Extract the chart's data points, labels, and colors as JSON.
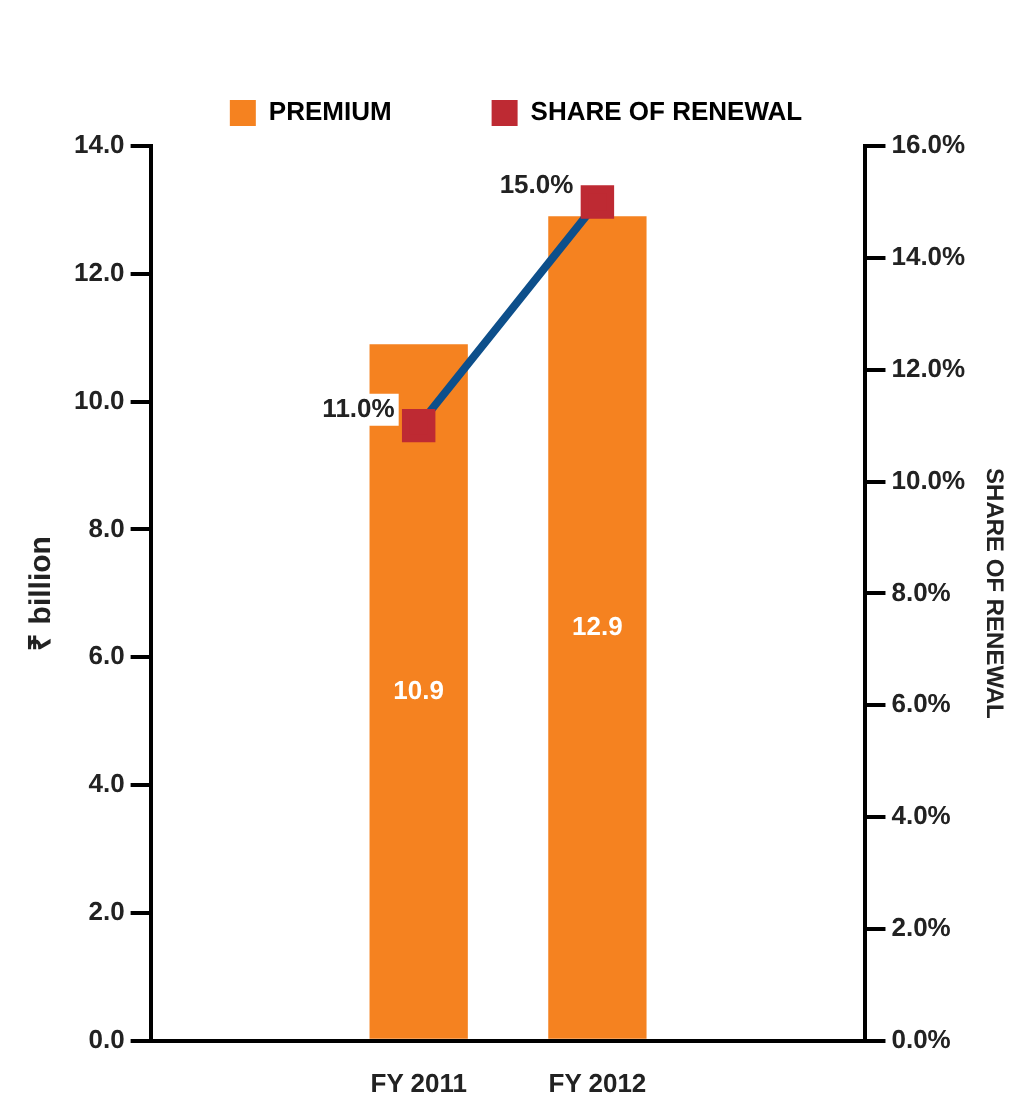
{
  "chart_data": {
    "type": "bar",
    "categories": [
      null,
      "FY 2011",
      "FY 2012",
      null
    ],
    "ylabel": "₹ billion",
    "y2label": "SHARE OF RENEWAL",
    "series": [
      {
        "name": "PREMIUM",
        "color": "#f58220",
        "values": [
          null,
          10.9,
          12.9,
          null
        ],
        "value_labels": [
          null,
          "10.9",
          "12.9",
          null
        ]
      },
      {
        "name": "SHARE OF RENEWAL",
        "type": "line",
        "axis": "y2",
        "color": "#be2a33",
        "values": [
          null,
          11.0,
          15.0,
          null
        ],
        "value_labels": [
          null,
          "11.0%",
          "15.0%",
          null
        ]
      }
    ],
    "ylim": [
      0,
      14
    ],
    "yticks": [
      {
        "value": 0,
        "label": "0.0"
      },
      {
        "value": 2,
        "label": "2.0"
      },
      {
        "value": 4,
        "label": "4.0"
      },
      {
        "value": 6,
        "label": "6.0"
      },
      {
        "value": 8,
        "label": "8.0"
      },
      {
        "value": 10,
        "label": "10.0"
      },
      {
        "value": 12,
        "label": "12.0"
      },
      {
        "value": 14,
        "label": "14.0"
      }
    ],
    "y2lim": [
      0,
      16
    ],
    "y2ticks": [
      {
        "value": 0,
        "label": "0.0%"
      },
      {
        "value": 2,
        "label": "2.0%"
      },
      {
        "value": 4,
        "label": "4.0%"
      },
      {
        "value": 6,
        "label": "6.0%"
      },
      {
        "value": 8,
        "label": "8.0%"
      },
      {
        "value": 10,
        "label": "10.0%"
      },
      {
        "value": 12,
        "label": "12.0%"
      },
      {
        "value": 14,
        "label": "14.0%"
      },
      {
        "value": 16,
        "label": "16.0%"
      }
    ],
    "grid": false,
    "legend": "top",
    "marker": "square",
    "line_style": "solid"
  }
}
